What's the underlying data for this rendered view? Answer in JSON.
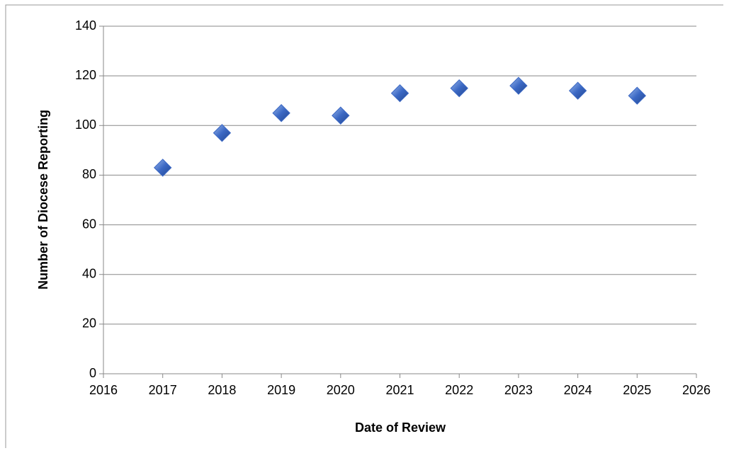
{
  "chart_data": {
    "type": "scatter",
    "x_label": "Date of Review",
    "y_label": "Number of Diocese Reporting",
    "series": [
      {
        "color": "#3b68c4",
        "x": [
          2017,
          2018,
          2019,
          2020,
          2021,
          2022,
          2023,
          2024,
          2025
        ],
        "values": [
          83,
          97,
          105,
          104,
          113,
          115,
          116,
          114,
          112
        ]
      }
    ],
    "xlim": [
      2016,
      2026
    ],
    "xticks": [
      2016,
      2017,
      2018,
      2019,
      2020,
      2021,
      2022,
      2023,
      2024,
      2025,
      2026
    ],
    "ylim": [
      0,
      140
    ],
    "yticks": [
      0,
      20,
      40,
      60,
      80,
      100,
      120,
      140
    ],
    "grid": true
  }
}
